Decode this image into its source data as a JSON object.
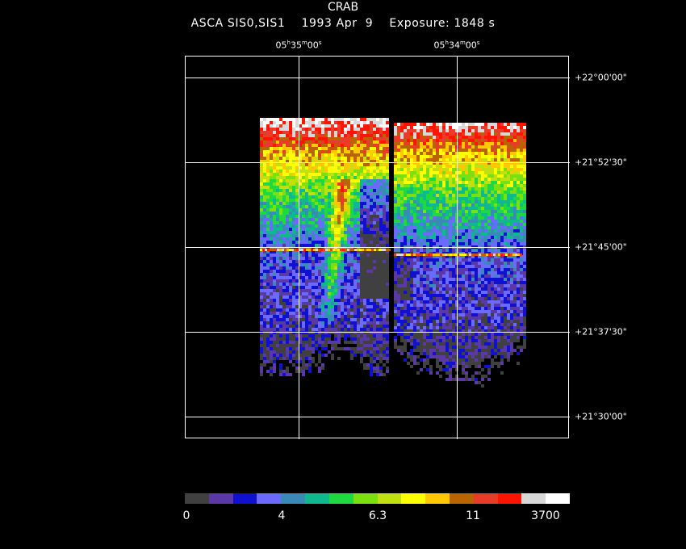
{
  "title": "CRAB",
  "subtitle": "ASCA SIS0,SIS1    1993 Apr  9    Exposure: 1848 s",
  "ra_labels": [
    {
      "h": "05",
      "m": "35",
      "s": "00"
    },
    {
      "h": "05",
      "m": "34",
      "s": "00"
    }
  ],
  "dec_labels": [
    "+22°00'00\"",
    "+21°52'30\"",
    "+21°45'00\"",
    "+21°37'30\"",
    "+21°30'00\""
  ],
  "colorbar": {
    "colors": [
      "#404040",
      "#5a38a8",
      "#1010d0",
      "#6a6aff",
      "#3a8ab8",
      "#10b890",
      "#20d840",
      "#7ae010",
      "#c0e010",
      "#ffff00",
      "#ffc800",
      "#b86400",
      "#e83c28",
      "#ff1400",
      "#d8d8d8",
      "#ffffff"
    ],
    "ticks": [
      "0",
      "4",
      "6.3",
      "11",
      "3700"
    ]
  }
}
